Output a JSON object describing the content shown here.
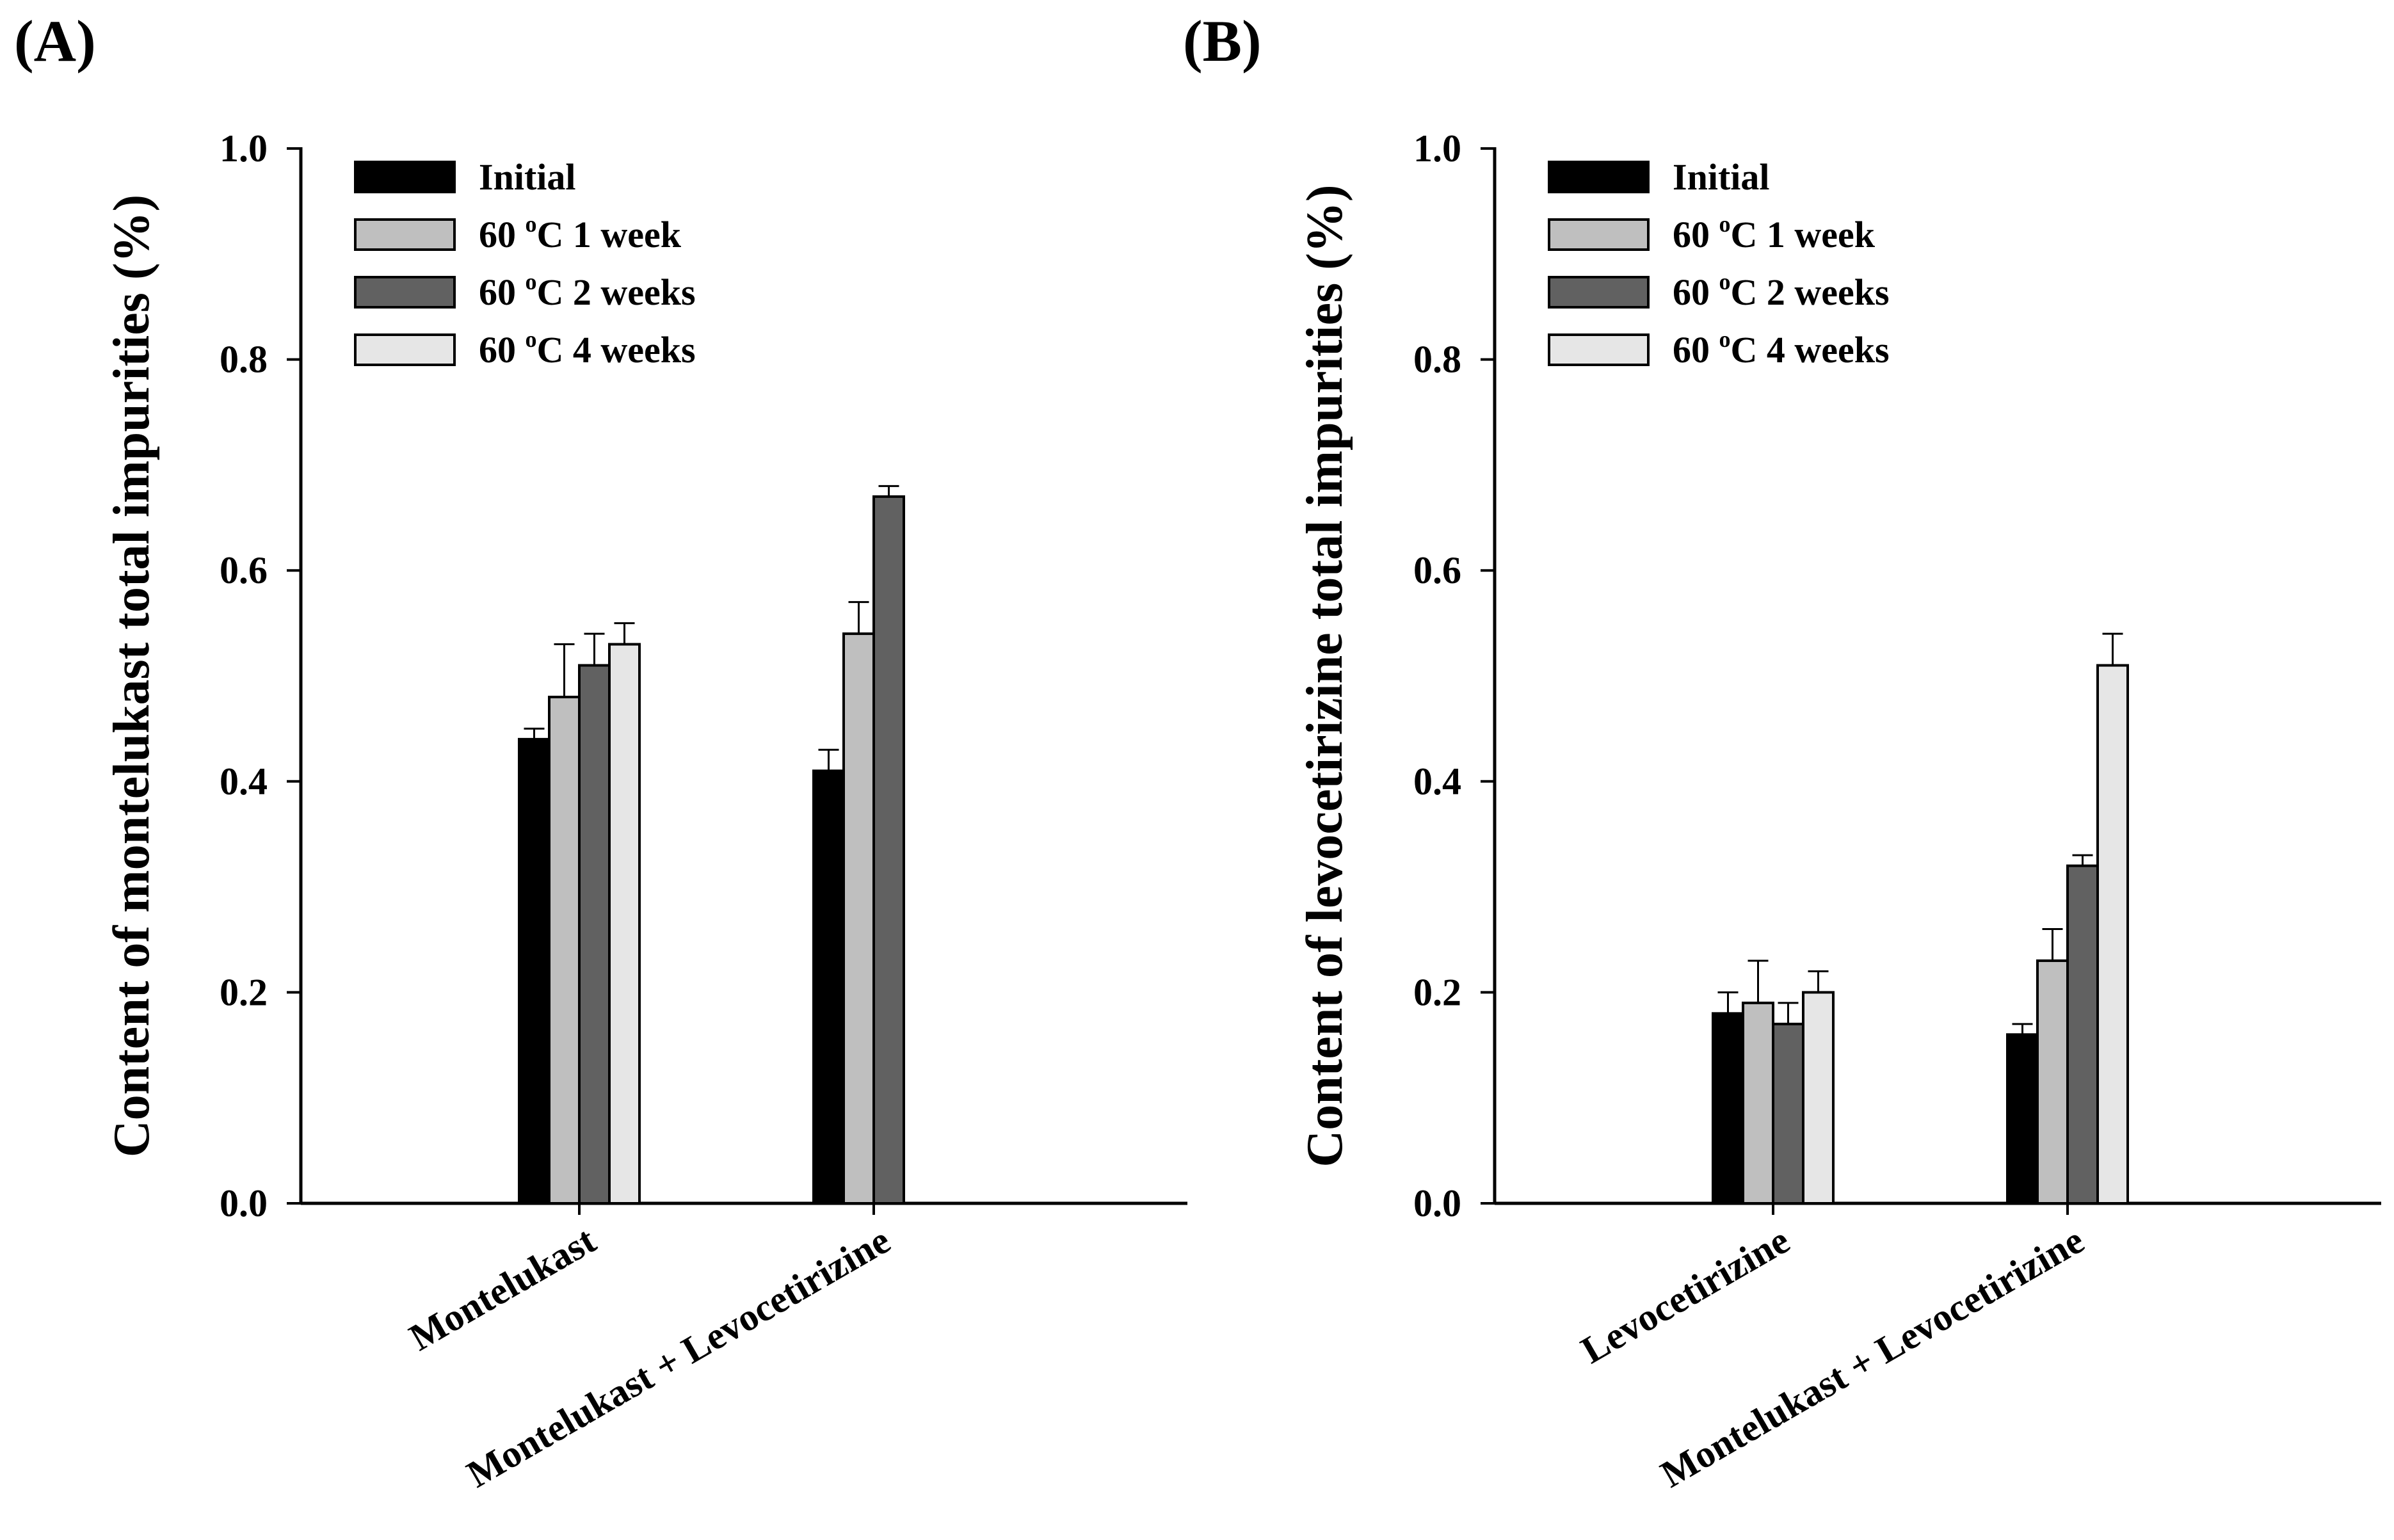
{
  "series_colors": [
    "#000000",
    "#bfbfbf",
    "#616161",
    "#e6e6e6"
  ],
  "legend": [
    {
      "pre": "Initial",
      "sup": "",
      "post": ""
    },
    {
      "pre": "60 ",
      "sup": "o",
      "post": "C 1 week"
    },
    {
      "pre": "60 ",
      "sup": "o",
      "post": "C 2 weeks"
    },
    {
      "pre": "60 ",
      "sup": "o",
      "post": "C 4 weeks"
    }
  ],
  "chart_data": [
    {
      "type": "bar",
      "panel": "(A)",
      "ylabel": "Content of montelukast total impurities (%)",
      "xlabel": "",
      "ylim": [
        0.0,
        1.0
      ],
      "yticks": [
        "0.0",
        "0.2",
        "0.4",
        "0.6",
        "0.8",
        "1.0"
      ],
      "legend_position": "top-left",
      "categories": [
        "Montelukast",
        "Montelukast + Levocetirizine"
      ],
      "series": [
        {
          "name": "Initial",
          "values": [
            0.44,
            0.41
          ],
          "errors": [
            0.01,
            0.02
          ]
        },
        {
          "name": "60 oC 1 week",
          "values": [
            0.48,
            0.54
          ],
          "errors": [
            0.05,
            0.03
          ]
        },
        {
          "name": "60 oC 2 weeks",
          "values": [
            0.51,
            0.67
          ],
          "errors": [
            0.03,
            0.01
          ]
        },
        {
          "name": "60 oC 4 weeks",
          "values": [
            0.53,
            null
          ],
          "errors": [
            0.02,
            null
          ]
        }
      ]
    },
    {
      "type": "bar",
      "panel": "(B)",
      "ylabel": "Content of levocetirizine total impurities (%)",
      "xlabel": "",
      "ylim": [
        0.0,
        1.0
      ],
      "yticks": [
        "0.0",
        "0.2",
        "0.4",
        "0.6",
        "0.8",
        "1.0"
      ],
      "legend_position": "top-left",
      "categories": [
        "Levocetirizine",
        "Montelukast + Levocetirizine"
      ],
      "series": [
        {
          "name": "Initial",
          "values": [
            0.18,
            0.16
          ],
          "errors": [
            0.02,
            0.01
          ]
        },
        {
          "name": "60 oC 1 week",
          "values": [
            0.19,
            0.23
          ],
          "errors": [
            0.04,
            0.03
          ]
        },
        {
          "name": "60 oC 2 weeks",
          "values": [
            0.17,
            0.32
          ],
          "errors": [
            0.02,
            0.01
          ]
        },
        {
          "name": "60 oC 4 weeks",
          "values": [
            0.2,
            0.51
          ],
          "errors": [
            0.02,
            0.03
          ]
        }
      ]
    }
  ]
}
